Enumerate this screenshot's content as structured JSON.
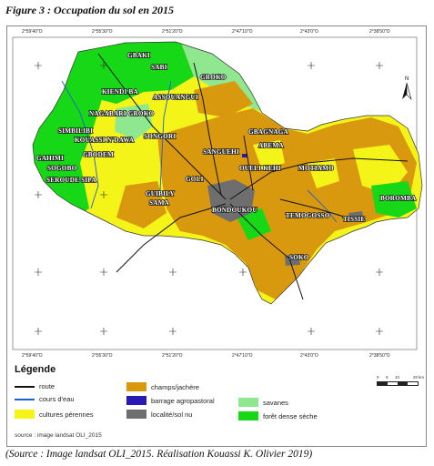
{
  "figure_title": "Figure 3 : Occupation du sol en 2015",
  "coords_top": [
    "2°59'40\"O",
    "2°55'30\"O",
    "2°51'20\"O",
    "2°47'10\"O",
    "2°43'0\"O",
    "2°38'50\"O"
  ],
  "coords_bottom": [
    "2°59'40\"O",
    "2°55'30\"O",
    "2°51'20\"O",
    "2°47'10\"O",
    "2°43'0\"O",
    "2°38'50\"O"
  ],
  "north_arrow": "N",
  "places": {
    "gbaki": "GBAKI",
    "sabi": "SABI",
    "groko": "GROKO",
    "kiendi_ba": "KIENDI BA",
    "assouangui": "ASSOUANGUI",
    "nagabari_groko": "NAGABARI GROKO",
    "simbilibi": "SIMBILIBI",
    "kouassi_ndawa": "KOUASSI N'DAWA",
    "songori": "SONGORI",
    "gbagnaga": "GBAGNAGA",
    "abema": "ABEMA",
    "sanguehi": "SANGUEHI",
    "gahimi": "GAHIMI",
    "sogobo": "SOGOBO",
    "gbodem": "GBODEM",
    "seroud_sipa": "SEROUDE SIPA",
    "oueli_kehi": "OUELI KEHI",
    "motiamo": "MOTIAMO",
    "goli": "GOLI",
    "guibily": "GUIBILY",
    "sama": "SAMA",
    "boromba": "BOROMBA",
    "bondoukou": "BONDOUKOU",
    "temogosso": "TEMOGOSSO",
    "tissie": "TISSIE",
    "soko": "SOKO"
  },
  "legend": {
    "title": "Légende",
    "items": [
      {
        "label": "route",
        "kind": "line",
        "color": "#111111"
      },
      {
        "label": "cours d'eau",
        "kind": "line",
        "color": "#1f5fd1"
      },
      {
        "label": "cultures pérennes",
        "kind": "box",
        "color": "#f4f419"
      },
      {
        "label": "champs/jachère",
        "kind": "box",
        "color": "#d9990f"
      },
      {
        "label": "barrage agropastoral",
        "kind": "box",
        "color": "#2a1ab5"
      },
      {
        "label": "localité/sol nu",
        "kind": "box",
        "color": "#6e6e6e"
      },
      {
        "label": "savanes",
        "kind": "box",
        "color": "#8fe88f"
      },
      {
        "label": "forêt dense sèche",
        "kind": "box",
        "color": "#17d817"
      }
    ],
    "source": "source : image landsat OLI_2015",
    "scale_numbers": [
      "0",
      "5",
      "10",
      "20"
    ],
    "scale_unit": "km"
  },
  "caption": "(Source : Image landsat OLI_2015. Réalisation Kouassi K. Olivier 2019)"
}
